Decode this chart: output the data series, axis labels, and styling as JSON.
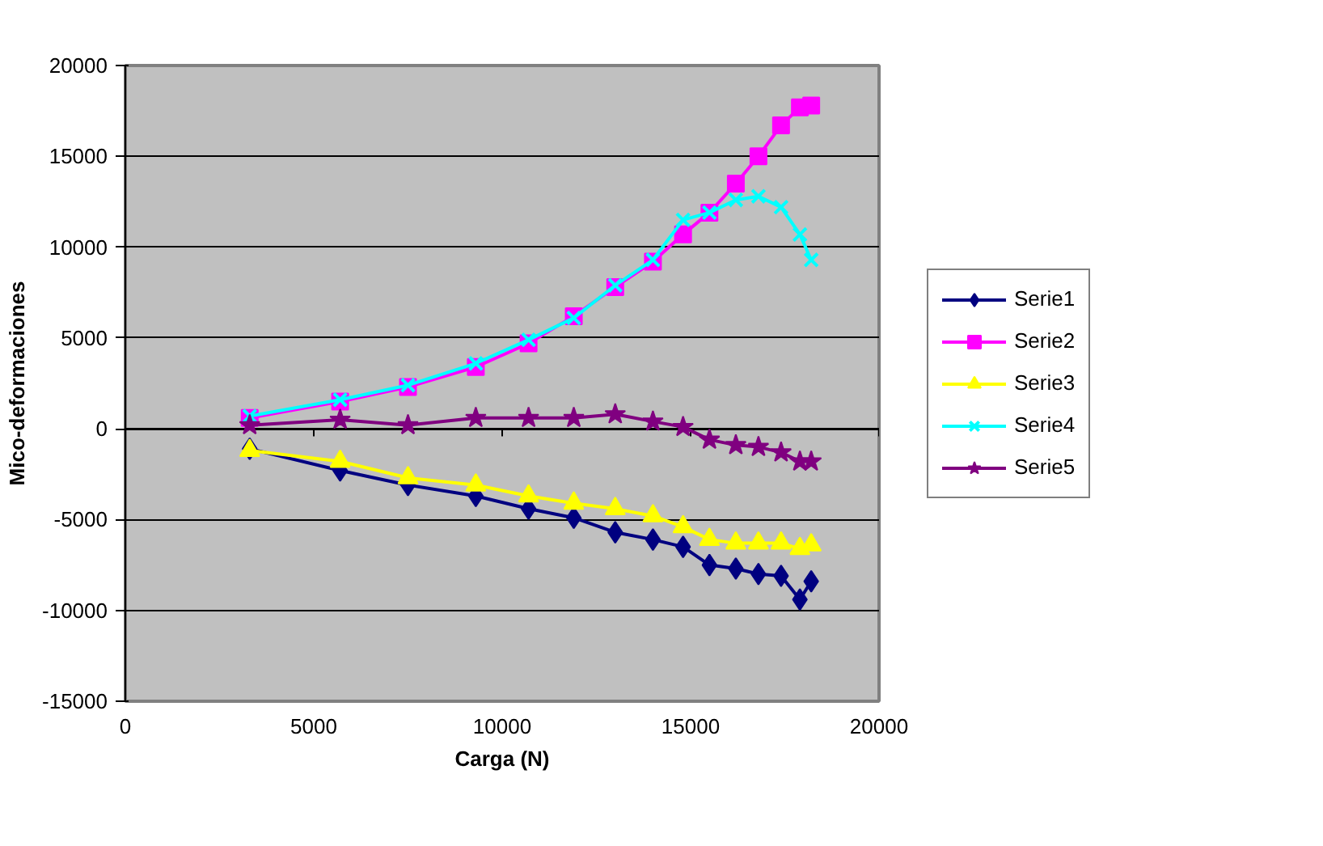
{
  "chart_data": {
    "type": "line",
    "xlabel": "Carga (N)",
    "ylabel": "Mico-deformaciones",
    "x": [
      3300,
      5700,
      7500,
      9300,
      10700,
      11900,
      13000,
      14000,
      14800,
      15500,
      16200,
      16800,
      17400,
      17900,
      18200
    ],
    "xlim": [
      0,
      20000
    ],
    "xticks": [
      0,
      5000,
      10000,
      15000,
      20000
    ],
    "ylim": [
      -15000,
      20000
    ],
    "yticks": [
      -15000,
      -10000,
      -5000,
      0,
      5000,
      10000,
      15000,
      20000
    ],
    "grid": "y",
    "legend": "right",
    "series": [
      {
        "name": "Serie1",
        "color": "#000080",
        "marker": "diamond",
        "values": [
          -1100,
          -2300,
          -3100,
          -3700,
          -4400,
          -4900,
          -5700,
          -6100,
          -6500,
          -7500,
          -7700,
          -8000,
          -8100,
          -9400,
          -8400
        ]
      },
      {
        "name": "Serie2",
        "color": "#ff00ff",
        "marker": "square",
        "values": [
          600,
          1500,
          2300,
          3400,
          4700,
          6200,
          7800,
          9200,
          10700,
          11900,
          13500,
          15000,
          16700,
          17700,
          17800
        ]
      },
      {
        "name": "Serie3",
        "color": "#ffff00",
        "marker": "triangle",
        "values": [
          -1200,
          -1800,
          -2700,
          -3100,
          -3700,
          -4100,
          -4400,
          -4800,
          -5400,
          -6100,
          -6300,
          -6300,
          -6300,
          -6600,
          -6400
        ]
      },
      {
        "name": "Serie4",
        "color": "#00ffff",
        "marker": "cross",
        "values": [
          700,
          1600,
          2400,
          3600,
          4900,
          6100,
          7900,
          9300,
          11500,
          11900,
          12600,
          12800,
          12200,
          10700,
          9300
        ]
      },
      {
        "name": "Serie5",
        "color": "#800080",
        "marker": "star",
        "values": [
          200,
          500,
          200,
          600,
          600,
          600,
          800,
          400,
          100,
          -600,
          -900,
          -1000,
          -1300,
          -1800,
          -1800
        ]
      }
    ]
  }
}
